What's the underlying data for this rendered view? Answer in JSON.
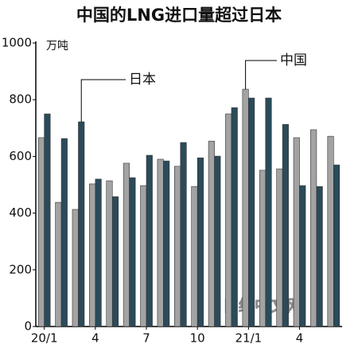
{
  "chart_data": {
    "type": "bar",
    "title": "中国的LNG进口量超过日本",
    "unit": "万吨",
    "watermark": "日经中文网",
    "categories": [
      "20/1",
      null,
      null,
      "4",
      null,
      null,
      "7",
      null,
      null,
      "10",
      null,
      null,
      "21/1",
      null,
      null,
      "4",
      null,
      null
    ],
    "series": [
      {
        "name": "中国",
        "color": "#a3a3a3",
        "values": [
          666,
          438,
          413,
          503,
          514,
          576,
          497,
          590,
          565,
          494,
          654,
          750,
          837,
          551,
          556,
          666,
          694,
          671
        ]
      },
      {
        "name": "日本",
        "color": "#2b4b5a",
        "values": [
          750,
          663,
          722,
          520,
          458,
          525,
          604,
          584,
          649,
          595,
          601,
          772,
          806,
          806,
          713,
          497,
          494,
          570
        ]
      }
    ],
    "ylim": [
      0,
      1000
    ],
    "yticks": [
      0,
      200,
      400,
      600,
      800,
      1000
    ],
    "grid": false
  }
}
